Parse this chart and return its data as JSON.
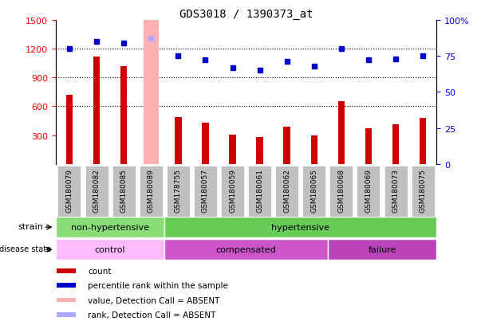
{
  "title": "GDS3018 / 1390373_at",
  "samples": [
    "GSM180079",
    "GSM180082",
    "GSM180085",
    "GSM180089",
    "GSM178755",
    "GSM180057",
    "GSM180059",
    "GSM180061",
    "GSM180062",
    "GSM180065",
    "GSM180068",
    "GSM180069",
    "GSM180073",
    "GSM180075"
  ],
  "counts": [
    720,
    1120,
    1020,
    null,
    490,
    430,
    310,
    280,
    390,
    300,
    650,
    370,
    410,
    480
  ],
  "absent_bar_index": 3,
  "absent_bar_color": "#ffb0b0",
  "percentile_ranks": [
    80,
    85,
    84,
    87,
    75,
    72,
    67,
    65,
    71,
    68,
    80,
    72,
    73,
    75
  ],
  "absent_rank_index": 3,
  "absent_rank_color": "#aaaaff",
  "bar_color": "#cc0000",
  "dot_color": "#0000cc",
  "ylim_left": [
    0,
    1500
  ],
  "ylim_right": [
    0,
    100
  ],
  "yticks_left": [
    300,
    600,
    900,
    1200,
    1500
  ],
  "yticks_right": [
    0,
    25,
    50,
    75,
    100
  ],
  "yticklabels_right": [
    "0",
    "25",
    "50",
    "75",
    "100%"
  ],
  "grid_values": [
    600,
    900,
    1200
  ],
  "strain_groups": [
    {
      "label": "non-hypertensive",
      "start": 0,
      "end": 4,
      "color": "#88dd77"
    },
    {
      "label": "hypertensive",
      "start": 4,
      "end": 14,
      "color": "#66cc55"
    }
  ],
  "disease_groups": [
    {
      "label": "control",
      "start": 0,
      "end": 4,
      "color": "#ffbbff"
    },
    {
      "label": "compensated",
      "start": 4,
      "end": 10,
      "color": "#cc55cc"
    },
    {
      "label": "failure",
      "start": 10,
      "end": 14,
      "color": "#bb44bb"
    }
  ],
  "legend_items": [
    {
      "label": "count",
      "color": "#cc0000"
    },
    {
      "label": "percentile rank within the sample",
      "color": "#0000cc"
    },
    {
      "label": "value, Detection Call = ABSENT",
      "color": "#ffb0b0"
    },
    {
      "label": "rank, Detection Call = ABSENT",
      "color": "#aaaaff"
    }
  ],
  "absent_bar_height": 1500,
  "fig_width": 6.08,
  "fig_height": 4.14,
  "dpi": 100
}
